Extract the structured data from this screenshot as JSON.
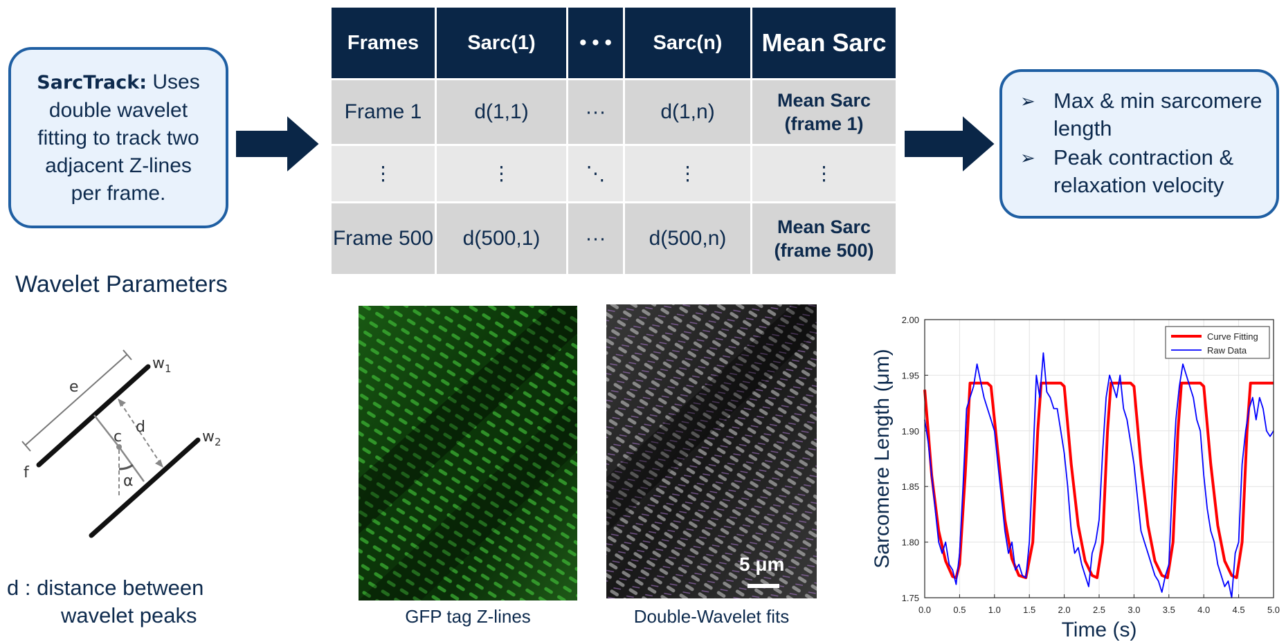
{
  "info_box": {
    "bold": "SarcTrack:",
    "text": "Uses double wavelet fitting to track two adjacent Z-lines per frame."
  },
  "table": {
    "headers": [
      "Frames",
      "Sarc(1)",
      "• • •",
      "Sarc(n)",
      "Mean Sarc"
    ],
    "rows": [
      [
        "Frame 1",
        "d(1,1)",
        "···",
        "d(1,n)",
        "Mean Sarc (frame 1)"
      ],
      [
        "⋮",
        "⋮",
        "⋱",
        "⋮",
        "⋮"
      ],
      [
        "Frame 500",
        "d(500,1)",
        "···",
        "d(500,n)",
        "Mean Sarc (frame 500)"
      ]
    ]
  },
  "output_box": {
    "items": [
      "Max & min sarcomere length",
      "Peak contraction & relaxation velocity"
    ]
  },
  "wavelet": {
    "title": "Wavelet Parameters",
    "labels": {
      "e": "e",
      "w1": "w",
      "w1_sub": "1",
      "w2": "w",
      "w2_sub": "2",
      "c": "c",
      "d": "d",
      "f": "f",
      "alpha": "α"
    },
    "caption_line1": "d : distance between",
    "caption_line2": "wavelet peaks"
  },
  "images": {
    "gfp_caption": "GFP tag Z-lines",
    "dw_caption": "Double-Wavelet fits",
    "scale": "5 μm"
  },
  "chart_data": {
    "type": "line",
    "xlabel": "Time (s)",
    "ylabel": "Sarcomere Length (μm)",
    "xlim": [
      0,
      5
    ],
    "ylim": [
      1.75,
      2.0
    ],
    "x_ticks": [
      "0.0",
      "0.5",
      "1.0",
      "1.5",
      "2.0",
      "2.5",
      "3.0",
      "3.5",
      "4.0",
      "4.5",
      "5.0"
    ],
    "y_ticks": [
      "1.75",
      "1.80",
      "1.85",
      "1.90",
      "1.95",
      "2.00"
    ],
    "grid": true,
    "legend_position": "top-right",
    "series": [
      {
        "name": "Curve Fitting",
        "color": "#ff0000",
        "x": [
          0.0,
          0.05,
          0.1,
          0.2,
          0.3,
          0.4,
          0.45,
          0.5,
          0.58,
          0.65,
          0.7,
          0.9,
          0.95,
          1.05,
          1.15,
          1.25,
          1.35,
          1.45,
          1.55,
          1.62,
          1.67,
          1.95,
          2.0,
          2.1,
          2.2,
          2.3,
          2.4,
          2.47,
          2.55,
          2.62,
          2.67,
          2.95,
          3.0,
          3.1,
          3.2,
          3.3,
          3.4,
          3.48,
          3.56,
          3.63,
          3.68,
          3.95,
          4.0,
          4.1,
          4.2,
          4.3,
          4.4,
          4.47,
          4.55,
          4.62,
          4.67,
          5.0
        ],
        "y": [
          1.937,
          1.9,
          1.86,
          1.81,
          1.783,
          1.769,
          1.768,
          1.78,
          1.86,
          1.943,
          1.943,
          1.943,
          1.94,
          1.88,
          1.82,
          1.785,
          1.77,
          1.768,
          1.8,
          1.9,
          1.943,
          1.943,
          1.94,
          1.87,
          1.815,
          1.783,
          1.77,
          1.768,
          1.8,
          1.9,
          1.943,
          1.943,
          1.94,
          1.87,
          1.815,
          1.783,
          1.77,
          1.768,
          1.8,
          1.9,
          1.943,
          1.943,
          1.94,
          1.87,
          1.815,
          1.783,
          1.77,
          1.768,
          1.8,
          1.9,
          1.943,
          1.943
        ]
      },
      {
        "name": "Raw Data",
        "color": "#0000ff",
        "x": [
          0.0,
          0.05,
          0.1,
          0.15,
          0.2,
          0.25,
          0.3,
          0.35,
          0.4,
          0.45,
          0.5,
          0.55,
          0.6,
          0.65,
          0.7,
          0.75,
          0.8,
          0.85,
          0.9,
          0.95,
          1.0,
          1.05,
          1.1,
          1.15,
          1.2,
          1.25,
          1.3,
          1.35,
          1.4,
          1.45,
          1.5,
          1.55,
          1.6,
          1.65,
          1.7,
          1.75,
          1.8,
          1.85,
          1.9,
          1.95,
          2.0,
          2.05,
          2.1,
          2.15,
          2.2,
          2.25,
          2.3,
          2.35,
          2.4,
          2.45,
          2.5,
          2.55,
          2.6,
          2.65,
          2.7,
          2.75,
          2.8,
          2.85,
          2.9,
          2.95,
          3.0,
          3.05,
          3.1,
          3.15,
          3.2,
          3.25,
          3.3,
          3.35,
          3.4,
          3.45,
          3.5,
          3.55,
          3.6,
          3.65,
          3.7,
          3.75,
          3.8,
          3.85,
          3.9,
          3.95,
          4.0,
          4.05,
          4.1,
          4.15,
          4.2,
          4.25,
          4.3,
          4.35,
          4.4,
          4.45,
          4.5,
          4.55,
          4.6,
          4.65,
          4.7,
          4.75,
          4.8,
          4.85,
          4.9,
          4.95,
          5.0
        ],
        "y": [
          1.91,
          1.89,
          1.86,
          1.83,
          1.8,
          1.79,
          1.8,
          1.78,
          1.775,
          1.762,
          1.79,
          1.85,
          1.92,
          1.93,
          1.94,
          1.96,
          1.945,
          1.93,
          1.92,
          1.91,
          1.9,
          1.87,
          1.84,
          1.81,
          1.79,
          1.8,
          1.775,
          1.78,
          1.77,
          1.768,
          1.8,
          1.87,
          1.95,
          1.93,
          1.97,
          1.935,
          1.93,
          1.92,
          1.92,
          1.9,
          1.88,
          1.85,
          1.81,
          1.79,
          1.795,
          1.78,
          1.77,
          1.76,
          1.79,
          1.8,
          1.82,
          1.88,
          1.93,
          1.95,
          1.94,
          1.93,
          1.95,
          1.92,
          1.91,
          1.89,
          1.87,
          1.84,
          1.81,
          1.8,
          1.79,
          1.78,
          1.77,
          1.765,
          1.755,
          1.77,
          1.78,
          1.85,
          1.91,
          1.94,
          1.96,
          1.95,
          1.94,
          1.93,
          1.91,
          1.9,
          1.86,
          1.83,
          1.81,
          1.8,
          1.78,
          1.77,
          1.76,
          1.765,
          1.75,
          1.79,
          1.8,
          1.87,
          1.9,
          1.92,
          1.93,
          1.91,
          1.93,
          1.92,
          1.9,
          1.895,
          1.9
        ]
      }
    ]
  }
}
